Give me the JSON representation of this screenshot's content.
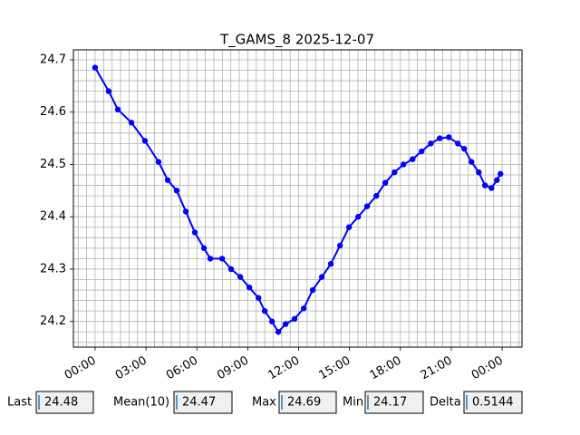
{
  "chart_data": {
    "type": "line",
    "title": "T_GAMS_8 2025-12-07",
    "x": [
      0,
      0.8,
      1.34,
      2.14,
      2.94,
      3.74,
      4.28,
      4.81,
      5.35,
      5.88,
      6.42,
      6.79,
      7.49,
      8.02,
      8.56,
      9.09,
      9.63,
      10.0,
      10.43,
      10.8,
      11.23,
      11.76,
      12.3,
      12.83,
      13.37,
      13.9,
      14.44,
      14.97,
      15.51,
      16.04,
      16.58,
      17.11,
      17.65,
      18.18,
      18.72,
      19.25,
      19.79,
      20.32,
      20.86,
      21.39,
      21.76,
      22.19,
      22.62,
      22.99,
      23.37,
      23.69,
      23.9
    ],
    "series": [
      {
        "color": "#0000ff",
        "values": [
          24.685,
          24.64,
          24.605,
          24.58,
          24.545,
          24.505,
          24.47,
          24.45,
          24.41,
          24.37,
          24.34,
          24.32,
          24.32,
          24.3,
          24.285,
          24.265,
          24.245,
          24.22,
          24.2,
          24.18,
          24.195,
          24.205,
          24.225,
          24.26,
          24.285,
          24.31,
          24.345,
          24.38,
          24.4,
          24.42,
          24.44,
          24.465,
          24.485,
          24.5,
          24.51,
          24.525,
          24.54,
          24.55,
          24.552,
          24.54,
          24.53,
          24.505,
          24.485,
          24.46,
          24.455,
          24.47,
          24.482
        ]
      }
    ],
    "xlim": [
      -1.28,
      25.17
    ],
    "xticks": [
      {
        "value": 0,
        "label": "00:00"
      },
      {
        "value": 3,
        "label": "03:00"
      },
      {
        "value": 6,
        "label": "06:00"
      },
      {
        "value": 9,
        "label": "09:00"
      },
      {
        "value": 12,
        "label": "12:00"
      },
      {
        "value": 15,
        "label": "15:00"
      },
      {
        "value": 18,
        "label": "18:00"
      },
      {
        "value": 21,
        "label": "21:00"
      },
      {
        "value": 24,
        "label": "00:00"
      }
    ],
    "xminorticks": [
      -1,
      -0.5,
      0.5,
      1,
      1.5,
      2,
      2.5,
      3.5,
      4,
      4.5,
      5,
      5.5,
      6.5,
      7,
      7.5,
      8,
      8.5,
      9.5,
      10,
      10.5,
      11,
      11.5,
      12.5,
      13,
      13.5,
      14,
      14.5,
      15.5,
      16,
      16.5,
      17,
      17.5,
      18.5,
      19,
      19.5,
      20,
      20.5,
      21.5,
      22,
      22.5,
      23,
      23.5,
      24.5,
      25
    ],
    "ylim": [
      24.151,
      24.719
    ],
    "yticks": [
      24.2,
      24.3,
      24.4,
      24.5,
      24.6,
      24.7
    ],
    "yminorticks": [
      24.16,
      24.18,
      24.22,
      24.24,
      24.26,
      24.28,
      24.32,
      24.34,
      24.36,
      24.38,
      24.42,
      24.44,
      24.46,
      24.48,
      24.52,
      24.54,
      24.56,
      24.58,
      24.62,
      24.64,
      24.66,
      24.68
    ],
    "grid": true
  },
  "stats": [
    {
      "label": "Last",
      "value": "24.48"
    },
    {
      "label": "Mean(10)",
      "value": "24.47"
    },
    {
      "label": "Max",
      "value": "24.69"
    },
    {
      "label": "Min",
      "value": "24.17"
    },
    {
      "label": "Delta",
      "value": "0.5144"
    }
  ]
}
